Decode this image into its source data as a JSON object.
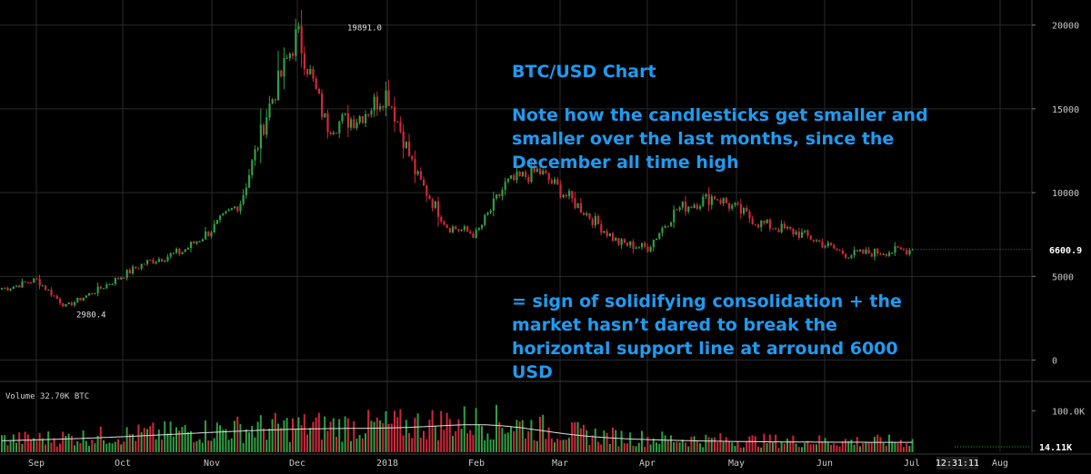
{
  "annotations": {
    "title": "BTC/USD Chart",
    "note": "Note how the candlesticks get smaller and smaller over the last months, since the December all time high",
    "conclusion": "= sign of solidifying consolidation + the market hasn’t dared to break the horizontal support line at arround 6000 USD"
  },
  "volume_label": {
    "name": "Volume",
    "value": "32.70K",
    "unit": "BTC"
  },
  "colors": {
    "up": "#2ea043",
    "down": "#d0283a",
    "annotation": "#1f9bf0",
    "grid": "#2a2a2a",
    "text": "#c8c8c8",
    "current_price_line": "#2ea043",
    "volume_ma": "#e0e0e0"
  },
  "chart_data": [
    {
      "type": "candlestick",
      "title": "",
      "price_axis_ticks": [
        0,
        5000,
        10000,
        15000,
        20000
      ],
      "ylim": [
        -1000,
        21500
      ],
      "x_tick_labels": [
        "Sep",
        "Oct",
        "Nov",
        "Dec",
        "2018",
        "Feb",
        "Mar",
        "Apr",
        "May",
        "Jun",
        "Jul",
        "Aug"
      ],
      "annotated_high": 19891.0,
      "annotated_low": 2980.4,
      "last_price": 6600.9,
      "close_path": [
        {
          "month": "Sep",
          "close": 4300
        },
        {
          "month": "Sep",
          "close": 4800
        },
        {
          "month": "Sep",
          "close": 3200
        },
        {
          "month": "Oct",
          "close": 4300
        },
        {
          "month": "Oct",
          "close": 5800
        },
        {
          "month": "Nov",
          "close": 6500
        },
        {
          "month": "Nov",
          "close": 7800
        },
        {
          "month": "Nov",
          "close": 9500
        },
        {
          "month": "Dec",
          "close": 15000
        },
        {
          "month": "Dec",
          "close": 19500
        },
        {
          "month": "Dec",
          "close": 14000
        },
        {
          "month": "2018",
          "close": 14500
        },
        {
          "month": "2018",
          "close": 16000
        },
        {
          "month": "2018",
          "close": 11000
        },
        {
          "month": "Feb",
          "close": 8000
        },
        {
          "month": "Feb",
          "close": 7500
        },
        {
          "month": "Feb",
          "close": 10500
        },
        {
          "month": "Mar",
          "close": 11300
        },
        {
          "month": "Mar",
          "close": 9000
        },
        {
          "month": "Apr",
          "close": 7000
        },
        {
          "month": "Apr",
          "close": 6700
        },
        {
          "month": "Apr",
          "close": 9000
        },
        {
          "month": "May",
          "close": 9800
        },
        {
          "month": "May",
          "close": 8200
        },
        {
          "month": "Jun",
          "close": 7500
        },
        {
          "month": "Jun",
          "close": 6300
        },
        {
          "month": "Jul",
          "close": 6600
        }
      ]
    },
    {
      "type": "bar",
      "title": "",
      "series_name": "Volume",
      "axis_ticks": [
        "100.0K"
      ],
      "last_value_label": "14.11K",
      "time_label": "12:31:11"
    }
  ]
}
